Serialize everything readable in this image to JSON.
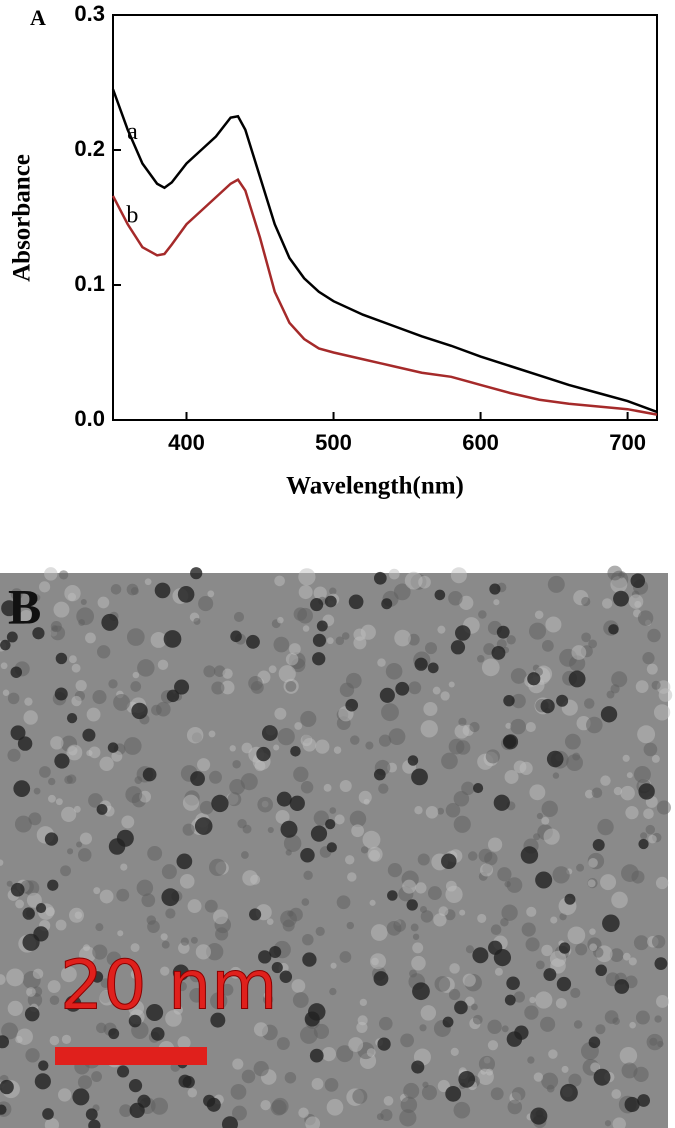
{
  "chart_data": {
    "type": "line",
    "panel_label": "A",
    "x_label": "Wavelength(nm)",
    "y_label": "Absorbance",
    "x": [
      350,
      360,
      370,
      380,
      385,
      390,
      400,
      410,
      420,
      430,
      435,
      440,
      450,
      460,
      470,
      480,
      490,
      500,
      520,
      540,
      560,
      580,
      600,
      620,
      640,
      660,
      680,
      700,
      720
    ],
    "series": [
      {
        "name": "a",
        "color": "#000000",
        "values": [
          0.245,
          0.215,
          0.19,
          0.175,
          0.172,
          0.176,
          0.19,
          0.2,
          0.21,
          0.224,
          0.225,
          0.215,
          0.18,
          0.145,
          0.12,
          0.105,
          0.095,
          0.088,
          0.078,
          0.07,
          0.062,
          0.055,
          0.047,
          0.04,
          0.033,
          0.026,
          0.02,
          0.014,
          0.006
        ]
      },
      {
        "name": "b",
        "color": "#a52a2a",
        "values": [
          0.166,
          0.145,
          0.128,
          0.122,
          0.123,
          0.13,
          0.145,
          0.155,
          0.165,
          0.175,
          0.178,
          0.17,
          0.135,
          0.095,
          0.072,
          0.06,
          0.053,
          0.05,
          0.045,
          0.04,
          0.035,
          0.032,
          0.026,
          0.02,
          0.015,
          0.012,
          0.01,
          0.008,
          0.004
        ]
      }
    ],
    "xlim": [
      350,
      720
    ],
    "ylim": [
      0,
      0.3
    ],
    "xticks": [
      400,
      500,
      600,
      700
    ],
    "yticks": [
      {
        "value": 0,
        "label": "0.0"
      },
      0.1,
      0.2,
      0.3
    ]
  },
  "panel_b": {
    "label": "B",
    "scale_bar_label": "20 nm"
  }
}
